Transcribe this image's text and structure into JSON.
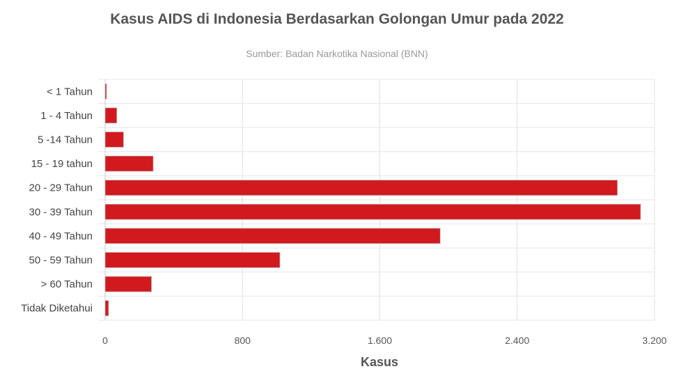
{
  "chart_data": {
    "type": "bar",
    "orientation": "horizontal",
    "title": "Kasus AIDS di Indonesia Berdasarkan Golongan Umur pada 2022",
    "subtitle": "Sumber: Badan Narkotika Nasional (BNN)",
    "xlabel": "Kasus",
    "ylabel": "",
    "categories": [
      "< 1 Tahun",
      "1 - 4 Tahun",
      "5 -14 Tahun",
      "15 - 19 tahun",
      "20 - 29 Tahun",
      "30 - 39 Tahun",
      "40 - 49 Tahun",
      "50 - 59 Tahun",
      "> 60 Tahun",
      "Tidak Diketahui"
    ],
    "values": [
      8,
      68,
      107,
      280,
      2984,
      3119,
      1952,
      1018,
      270,
      20
    ],
    "xlim": [
      0,
      3200
    ],
    "ticks": [
      0,
      800,
      1600,
      2400,
      3200
    ],
    "tick_labels": [
      "0",
      "800",
      "1.600",
      "2.400",
      "3.200"
    ],
    "grid": true,
    "legend": "none",
    "bar_color": "#d2191e"
  }
}
